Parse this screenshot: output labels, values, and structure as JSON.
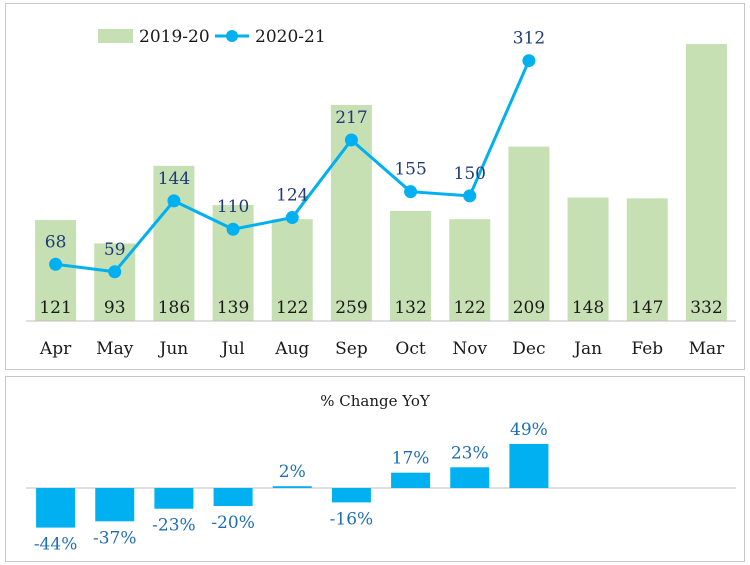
{
  "chart_data": [
    {
      "type": "bar+line",
      "title": "",
      "xlabel": "",
      "ylabel": "",
      "categories": [
        "Apr",
        "May",
        "Jun",
        "Jul",
        "Aug",
        "Sep",
        "Oct",
        "Nov",
        "Dec",
        "Jan",
        "Feb",
        "Mar"
      ],
      "series": [
        {
          "name": "2019-20",
          "type": "bar",
          "color": "#c6e0b4",
          "values": [
            121,
            93,
            186,
            139,
            122,
            259,
            132,
            122,
            209,
            148,
            147,
            332
          ],
          "labels": [
            "121",
            "93",
            "186",
            "139",
            "122",
            "259",
            "132",
            "122",
            "209",
            "148",
            "147",
            "332"
          ]
        },
        {
          "name": "2020-21",
          "type": "line",
          "color": "#00b0f0",
          "values": [
            68,
            59,
            144,
            110,
            124,
            217,
            155,
            150,
            312,
            null,
            null,
            null
          ],
          "labels": [
            "68",
            "59",
            "144",
            "110",
            "124",
            "217",
            "155",
            "150",
            "312",
            "",
            "",
            ""
          ]
        }
      ],
      "ylim": [
        0,
        350
      ],
      "grid": false,
      "legend": "top-left"
    },
    {
      "type": "bar",
      "title": "% Change YoY",
      "xlabel": "",
      "ylabel": "",
      "categories": [
        "Apr",
        "May",
        "Jun",
        "Jul",
        "Aug",
        "Sep",
        "Oct",
        "Nov",
        "Dec",
        "Jan",
        "Feb",
        "Mar"
      ],
      "values": [
        -44,
        -37,
        -23,
        -20,
        2,
        -16,
        17,
        23,
        49,
        null,
        null,
        null
      ],
      "labels": [
        "-44%",
        "-37%",
        "-23%",
        "-20%",
        "2%",
        "-16%",
        "17%",
        "23%",
        "49%",
        "",
        "",
        ""
      ],
      "color": "#00b0f0",
      "label_color": "#1f6eb5",
      "ylim": [
        -60,
        60
      ],
      "grid": false,
      "legend": "none"
    }
  ],
  "colors": {
    "value_label": "#1a1a1a",
    "line_label": "#1f3a78",
    "axis": "#bfbfbf"
  }
}
